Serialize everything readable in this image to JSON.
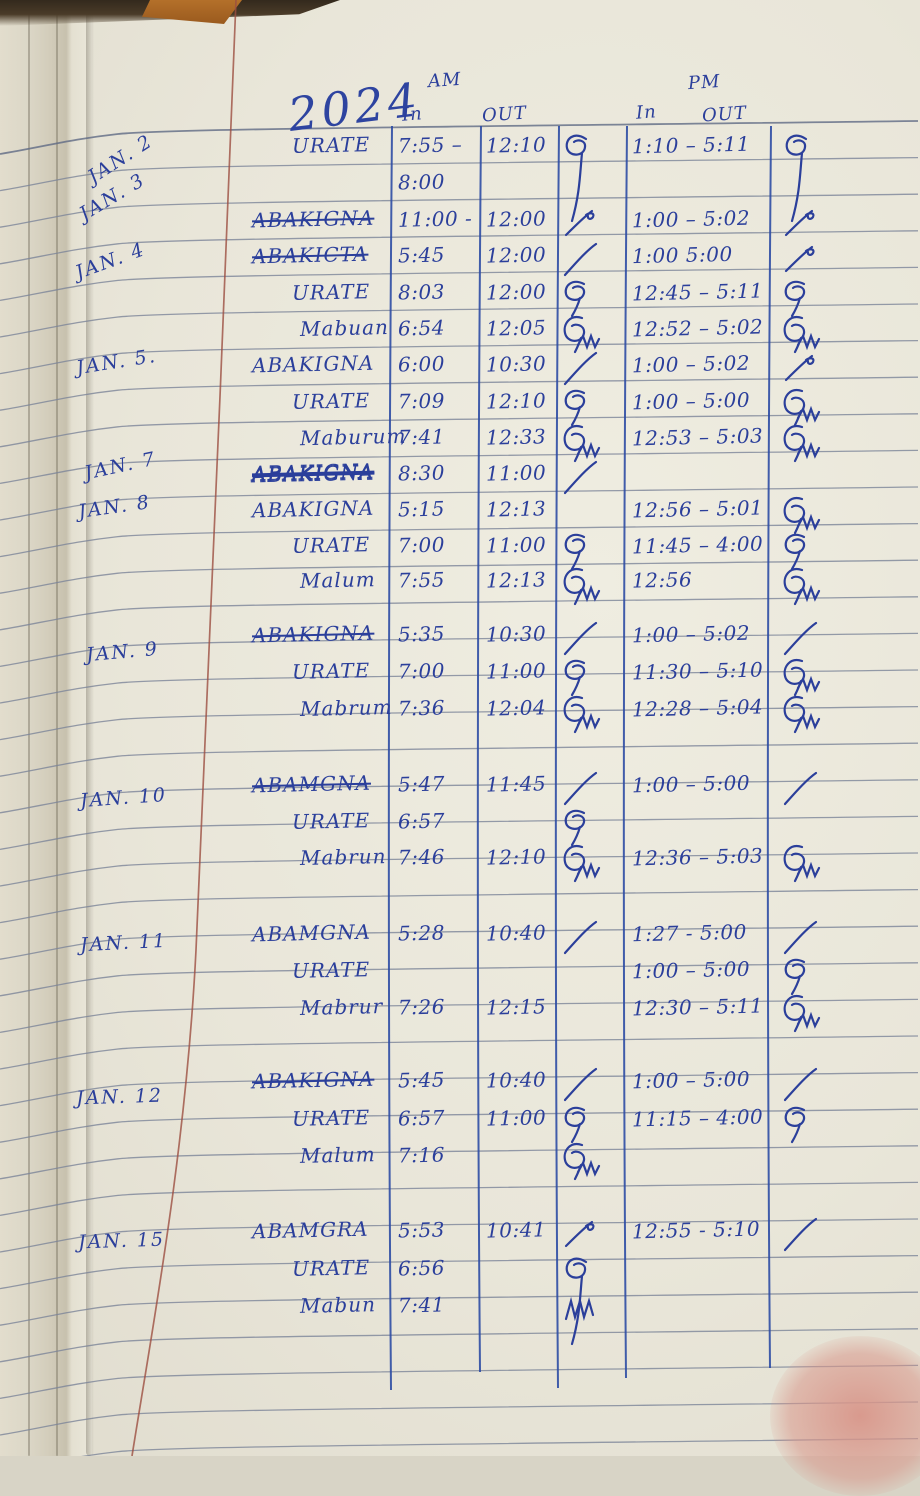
{
  "header": {
    "year": "2024",
    "am": "AM",
    "pm": "PM",
    "am_in": "In",
    "am_out": "OUT",
    "pm_in": "In",
    "pm_out": "OUT"
  },
  "dates": [
    "JAN. 2",
    "JAN. 3",
    "JAN. 4",
    "JAN. 5.",
    "JAN. 7",
    "JAN. 8",
    "JAN. 9",
    "JAN. 10",
    "JAN. 11",
    "JAN. 12",
    "JAN. 15"
  ],
  "rows": [
    {
      "name": "URATE",
      "am_in": "7:55 –",
      "am_out": "12:10",
      "pm": "1:10 – 5:11",
      "am_sig": "loop-tall",
      "pm_sig": "loop-tall",
      "strike": false
    },
    {
      "name": "",
      "am_in": "8:00",
      "am_out": "",
      "pm": "",
      "am_sig": "none",
      "pm_sig": "none",
      "strike": false
    },
    {
      "name": "ABAKIGNA",
      "am_in": "11:00 -",
      "am_out": "12:00",
      "pm": "1:00 – 5:02",
      "am_sig": "curl",
      "pm_sig": "curl",
      "strike": true
    },
    {
      "name": "ABAKICTA",
      "am_in": "5:45",
      "am_out": "12:00",
      "pm": "1:00  5:00",
      "am_sig": "slash",
      "pm_sig": "curl",
      "strike": true
    },
    {
      "name": "URATE",
      "am_in": "8:03",
      "am_out": "12:00",
      "pm": "12:45 – 5:11",
      "am_sig": "loop",
      "pm_sig": "loop",
      "strike": false
    },
    {
      "name": "Mabuan",
      "am_in": "6:54",
      "am_out": "12:05",
      "pm": "12:52 – 5:02",
      "am_sig": "loopm",
      "pm_sig": "loopm",
      "strike": false
    },
    {
      "name": "ABAKIGNA",
      "am_in": "6:00",
      "am_out": "10:30",
      "pm": "1:00 – 5:02",
      "am_sig": "slash",
      "pm_sig": "curl",
      "strike": false
    },
    {
      "name": "URATE",
      "am_in": "7:09",
      "am_out": "12:10",
      "pm": "1:00 – 5:00",
      "am_sig": "loop",
      "pm_sig": "loopm",
      "strike": false
    },
    {
      "name": "Maburum",
      "am_in": "7:41",
      "am_out": "12:33",
      "pm": "12:53 – 5:03",
      "am_sig": "loopm",
      "pm_sig": "loopm",
      "strike": false
    },
    {
      "name": "ABAKIGNA",
      "am_in": "8:30",
      "am_out": "11:00",
      "pm": "",
      "am_sig": "slash",
      "pm_sig": "none",
      "strike": true
    },
    {
      "name": "ABAKIGNA",
      "am_in": "5:15",
      "am_out": "12:13",
      "pm": "12:56 – 5:01",
      "am_sig": "none",
      "pm_sig": "loopm",
      "strike": false
    },
    {
      "name": "URATE",
      "am_in": "7:00",
      "am_out": "11:00",
      "pm": "11:45 – 4:00",
      "am_sig": "loop",
      "pm_sig": "loop",
      "strike": false
    },
    {
      "name": "Malum",
      "am_in": "7:55",
      "am_out": "12:13",
      "pm": "12:56",
      "am_sig": "loopm",
      "pm_sig": "loopm",
      "strike": false
    },
    {
      "name": "ABAKIGNA",
      "am_in": "5:35",
      "am_out": "10:30",
      "pm": "1:00 – 5:02",
      "am_sig": "slash",
      "pm_sig": "slash",
      "strike": true
    },
    {
      "name": "URATE",
      "am_in": "7:00",
      "am_out": "11:00",
      "pm": "11:30 – 5:10",
      "am_sig": "loop",
      "pm_sig": "loopm",
      "strike": false
    },
    {
      "name": "Mabrum",
      "am_in": "7:36",
      "am_out": "12:04",
      "pm": "12:28 – 5:04",
      "am_sig": "loopm",
      "pm_sig": "loopm",
      "strike": false
    },
    {
      "name": "ABAMGNA",
      "am_in": "5:47",
      "am_out": "11:45",
      "pm": "1:00 – 5:00",
      "am_sig": "slash",
      "pm_sig": "slash",
      "strike": true
    },
    {
      "name": "URATE",
      "am_in": "6:57",
      "am_out": "",
      "pm": "",
      "am_sig": "loop",
      "pm_sig": "none",
      "strike": false
    },
    {
      "name": "Mabrun",
      "am_in": "7:46",
      "am_out": "12:10",
      "pm": "12:36 – 5:03",
      "am_sig": "loopm",
      "pm_sig": "loopm",
      "strike": false
    },
    {
      "name": "ABAMGNA",
      "am_in": "5:28",
      "am_out": "10:40",
      "pm": "1:27 - 5:00",
      "am_sig": "slash",
      "pm_sig": "slash",
      "strike": false
    },
    {
      "name": "URATE",
      "am_in": "",
      "am_out": "",
      "pm": "1:00 – 5:00",
      "am_sig": "none",
      "pm_sig": "loop",
      "strike": false
    },
    {
      "name": "Mabrur",
      "am_in": "7:26",
      "am_out": "12:15",
      "pm": "12:30 – 5:11",
      "am_sig": "none",
      "pm_sig": "loopm",
      "strike": false
    },
    {
      "name": "ABAKIGNA",
      "am_in": "5:45",
      "am_out": "10:40",
      "pm": "1:00 – 5:00",
      "am_sig": "slash",
      "pm_sig": "slash",
      "strike": true
    },
    {
      "name": "URATE",
      "am_in": "6:57",
      "am_out": "11:00",
      "pm": "11:15 – 4:00",
      "am_sig": "loop",
      "pm_sig": "loop",
      "strike": false
    },
    {
      "name": "Malum",
      "am_in": "7:16",
      "am_out": "",
      "pm": "",
      "am_sig": "loopm",
      "pm_sig": "none",
      "strike": false
    },
    {
      "name": "ABAMGRA",
      "am_in": "5:53",
      "am_out": "10:41",
      "pm": "12:55 - 5:10",
      "am_sig": "curl",
      "pm_sig": "slash",
      "strike": false
    },
    {
      "name": "URATE",
      "am_in": "6:56",
      "am_out": "",
      "pm": "",
      "am_sig": "loop-tall",
      "pm_sig": "none",
      "strike": false
    },
    {
      "name": "Mabun",
      "am_in": "7:41",
      "am_out": "",
      "pm": "",
      "am_sig": "mscrawl",
      "pm_sig": "none",
      "strike": false
    }
  ]
}
